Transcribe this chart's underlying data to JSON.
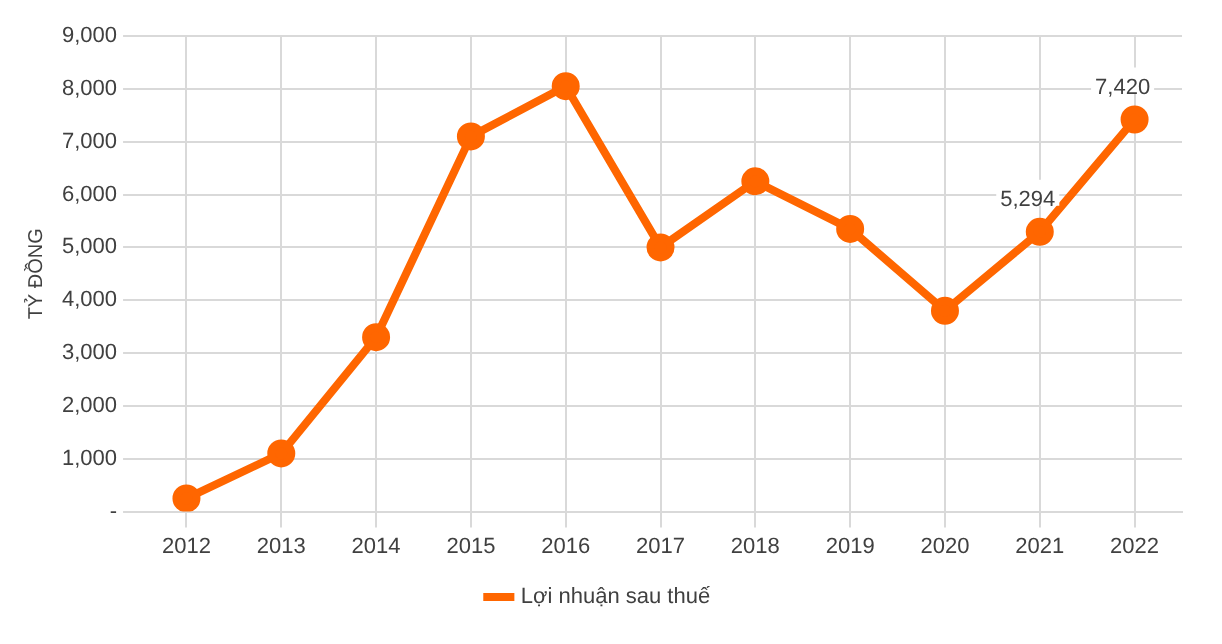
{
  "chart_data": {
    "type": "line",
    "ylabel": "TỶ ĐỒNG",
    "categories": [
      "2012",
      "2013",
      "2014",
      "2015",
      "2016",
      "2017",
      "2018",
      "2019",
      "2020",
      "2021",
      "2022"
    ],
    "series": [
      {
        "name": "Lợi nhuận sau thuế",
        "color": "#ff6600",
        "values": [
          250,
          1100,
          3300,
          7100,
          8050,
          5000,
          6250,
          5350,
          3800,
          5294,
          7420
        ],
        "value_labels": [
          null,
          null,
          null,
          null,
          null,
          null,
          null,
          null,
          null,
          "5,294",
          "7,420"
        ]
      }
    ],
    "ylim": [
      0,
      9000
    ],
    "yticks": [
      {
        "value": 0,
        "label": "-"
      },
      {
        "value": 1000,
        "label": "1,000"
      },
      {
        "value": 2000,
        "label": "2,000"
      },
      {
        "value": 3000,
        "label": "3,000"
      },
      {
        "value": 4000,
        "label": "4,000"
      },
      {
        "value": 5000,
        "label": "5,000"
      },
      {
        "value": 6000,
        "label": "6,000"
      },
      {
        "value": 7000,
        "label": "7,000"
      },
      {
        "value": 8000,
        "label": "8,000"
      },
      {
        "value": 9000,
        "label": "9,000"
      }
    ],
    "grid": true,
    "legend": "bottom",
    "marker": "circle",
    "line_style": "solid"
  }
}
